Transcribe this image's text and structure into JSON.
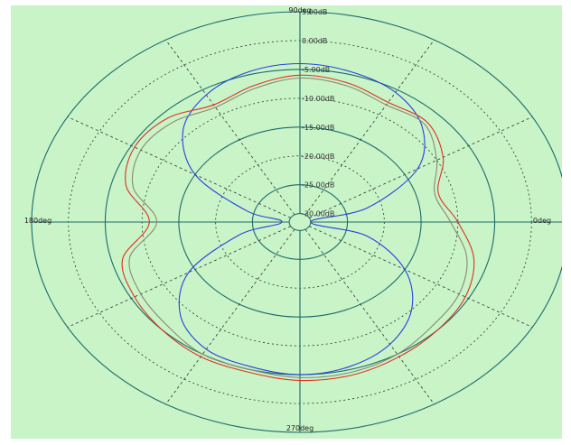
{
  "chart_data": {
    "type": "polar-line",
    "title": "",
    "angle_unit": "deg",
    "angle_labels": [
      {
        "angle": 0,
        "text": "0deg"
      },
      {
        "angle": 90,
        "text": "90deg"
      },
      {
        "angle": 180,
        "text": "180deg"
      },
      {
        "angle": 270,
        "text": "270deg"
      }
    ],
    "ring_levels_db": [
      5,
      0,
      -5,
      -10,
      -15,
      -20,
      -25,
      -30
    ],
    "ring_labels": [
      "5.00dB",
      "0.00dB",
      "-5.00dB",
      "-10.00dB",
      "-15.00dB",
      "-20.00dB",
      "-25.00dB",
      "-30.00dB"
    ],
    "radial_range_db": [
      -30,
      5
    ],
    "angular_gridlines_every_deg": 30,
    "grid": true,
    "colors": {
      "background": "#c8f4c8",
      "ring_major": "#1e6a6a",
      "ring_dashed": "#333333",
      "angle_grid": "#1e6a6a",
      "series_blue": "#2a3fe0",
      "series_red": "#e03020",
      "series_gray": "#8a8a70"
    },
    "series": [
      {
        "color_key": "series_blue",
        "angles": [
          0,
          15,
          30,
          45,
          60,
          75,
          90,
          105,
          120,
          135,
          150,
          165,
          180,
          195,
          210,
          225,
          240,
          255,
          270,
          285,
          300,
          315,
          330,
          345
        ],
        "values_db": [
          -30,
          -22,
          -13,
          -8,
          -5.5,
          -4.5,
          -4,
          -4.5,
          -6,
          -9,
          -15,
          -24,
          -29,
          -23,
          -14,
          -8.5,
          -6,
          -5.5,
          -5,
          -5.5,
          -7,
          -10,
          -15,
          -22
        ]
      },
      {
        "color_key": "series_red",
        "angles": [
          0,
          15,
          30,
          45,
          60,
          75,
          90,
          105,
          120,
          135,
          150,
          165,
          180,
          195,
          210,
          225,
          240,
          255,
          270,
          285,
          300,
          315,
          330,
          345
        ],
        "values_db": [
          -10,
          -12,
          -9,
          -7,
          -7.5,
          -6.5,
          -6,
          -7,
          -8,
          -6,
          -5.5,
          -7,
          -11,
          -6.5,
          -5.5,
          -5,
          -4.5,
          -4.5,
          -4,
          -4,
          -4.5,
          -5,
          -5.5,
          -7
        ]
      },
      {
        "color_key": "series_gray",
        "angles": [
          0,
          15,
          30,
          45,
          60,
          75,
          90,
          105,
          120,
          135,
          150,
          165,
          180,
          195,
          210,
          225,
          240,
          255,
          270,
          285,
          300,
          315,
          330,
          345
        ],
        "values_db": [
          -11,
          -12.5,
          -10,
          -7.5,
          -8,
          -7,
          -6.5,
          -7.5,
          -8.5,
          -7,
          -6.5,
          -8,
          -12,
          -7.5,
          -6.5,
          -6,
          -5,
          -5,
          -4.5,
          -4.5,
          -5,
          -6,
          -6.5,
          -8
        ]
      }
    ]
  }
}
